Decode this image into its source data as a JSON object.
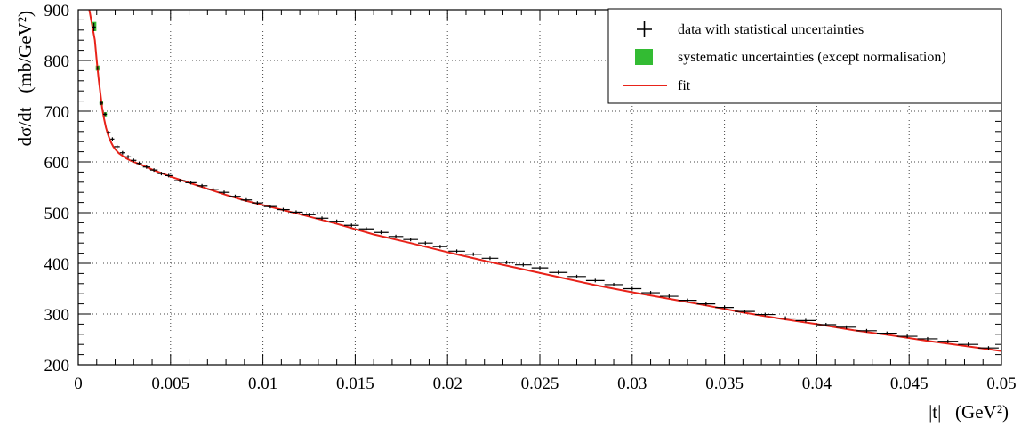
{
  "chart_data": {
    "type": "line",
    "xlabel": "|t|   (GeV²)",
    "ylabel": "dσ/dt   (mb/GeV²)",
    "xlim": [
      0,
      0.05
    ],
    "ylim": [
      200,
      900
    ],
    "x_ticks": [
      "0",
      "0.005",
      "0.01",
      "0.015",
      "0.02",
      "0.025",
      "0.03",
      "0.035",
      "0.04",
      "0.045",
      "0.05"
    ],
    "y_ticks": [
      "200",
      "300",
      "400",
      "500",
      "600",
      "700",
      "800",
      "900"
    ],
    "grid": true,
    "legend_position": "top-right",
    "legend": [
      {
        "label": "data with statistical uncertainties",
        "symbol": "cross",
        "color": "#000000"
      },
      {
        "label": "systematic uncertainties (except normalisation)",
        "symbol": "box",
        "color": "#33bb33"
      },
      {
        "label": "fit",
        "symbol": "line",
        "color": "#e8231a"
      }
    ],
    "series": [
      {
        "name": "data with statistical uncertainties",
        "kind": "points",
        "x": [
          0.00085,
          0.00105,
          0.00125,
          0.00145,
          0.00165,
          0.00185,
          0.0021,
          0.0024,
          0.0027,
          0.003,
          0.0033,
          0.0037,
          0.0041,
          0.0045,
          0.0049,
          0.0055,
          0.0061,
          0.0067,
          0.0073,
          0.0079,
          0.0085,
          0.0091,
          0.0097,
          0.0104,
          0.0111,
          0.0118,
          0.0125,
          0.0132,
          0.014,
          0.0148,
          0.0156,
          0.0164,
          0.0172,
          0.018,
          0.0188,
          0.0196,
          0.0205,
          0.0214,
          0.0223,
          0.0232,
          0.0241,
          0.025,
          0.026,
          0.027,
          0.028,
          0.029,
          0.03,
          0.031,
          0.032,
          0.033,
          0.034,
          0.035,
          0.0361,
          0.0372,
          0.0383,
          0.0394,
          0.0405,
          0.0416,
          0.0427,
          0.0438,
          0.0449,
          0.046,
          0.0471,
          0.0482,
          0.0493
        ],
        "y": [
          866,
          785,
          716,
          694,
          658,
          645,
          630,
          618,
          610,
          603,
          597,
          590,
          584,
          577,
          573,
          563,
          559,
          553,
          546,
          540,
          532,
          525,
          519,
          512,
          506,
          501,
          496,
          489,
          483,
          475,
          468,
          461,
          453,
          447,
          440,
          433,
          424,
          418,
          410,
          402,
          397,
          391,
          382,
          374,
          366,
          358,
          350,
          342,
          335,
          327,
          320,
          313,
          305,
          299,
          292,
          287,
          279,
          274,
          267,
          262,
          256,
          251,
          246,
          240,
          233
        ],
        "x_halfwidth": [
          0.0001,
          0.0001,
          0.0001,
          0.0001,
          0.0001,
          0.0001,
          0.00015,
          0.00015,
          0.00015,
          0.00015,
          0.00015,
          0.0002,
          0.0002,
          0.0002,
          0.0002,
          0.0003,
          0.0003,
          0.0003,
          0.0003,
          0.0003,
          0.0003,
          0.0003,
          0.0003,
          0.00035,
          0.00035,
          0.00035,
          0.00035,
          0.00035,
          0.0004,
          0.0004,
          0.0004,
          0.0004,
          0.0004,
          0.0004,
          0.0004,
          0.0004,
          0.00045,
          0.00045,
          0.00045,
          0.00045,
          0.00045,
          0.00045,
          0.0005,
          0.0005,
          0.0005,
          0.0005,
          0.0005,
          0.0005,
          0.0005,
          0.0005,
          0.0005,
          0.0005,
          0.00055,
          0.00055,
          0.00055,
          0.00055,
          0.00055,
          0.00055,
          0.00055,
          0.00055,
          0.00055,
          0.00055,
          0.00055,
          0.00055,
          0.00055
        ],
        "y_err": [
          8,
          4,
          3,
          3,
          3,
          3,
          2,
          2,
          2,
          2,
          2,
          2,
          2,
          2,
          2,
          2,
          2,
          2,
          2,
          2,
          2,
          2,
          2,
          2,
          2,
          2,
          2,
          2,
          2,
          2,
          2,
          2,
          2,
          2,
          2,
          2,
          2,
          2,
          2,
          2,
          2,
          2,
          2,
          2,
          2,
          2,
          2,
          2,
          2,
          2,
          2,
          2,
          2,
          2,
          2,
          2,
          2,
          2,
          2,
          2,
          2,
          2,
          2,
          2,
          2
        ]
      },
      {
        "name": "systematic uncertainties (except normalisation)",
        "kind": "bands",
        "x": [
          0.00085,
          0.00105,
          0.00125,
          0.00145
        ],
        "y_low": [
          858,
          780,
          712,
          690
        ],
        "y_high": [
          876,
          790,
          720,
          698
        ],
        "x_halfwidth": [
          0.00013,
          0.0001,
          0.0001,
          0.0001
        ]
      },
      {
        "name": "fit",
        "kind": "line",
        "x": [
          0.0006,
          0.0007,
          0.0008,
          0.0009,
          0.001,
          0.0011,
          0.0012,
          0.0013,
          0.0014,
          0.0015,
          0.0016,
          0.0017,
          0.0018,
          0.0019,
          0.002,
          0.0022,
          0.0024,
          0.0026,
          0.0028,
          0.003,
          0.0035,
          0.004,
          0.0045,
          0.005,
          0.006,
          0.007,
          0.008,
          0.009,
          0.01,
          0.012,
          0.014,
          0.016,
          0.018,
          0.02,
          0.022,
          0.024,
          0.026,
          0.028,
          0.03,
          0.032,
          0.034,
          0.036,
          0.038,
          0.04,
          0.042,
          0.044,
          0.046,
          0.048,
          0.05
        ],
        "y": [
          900,
          880,
          860,
          840,
          800,
          765,
          735,
          705,
          685,
          668,
          655,
          645,
          637,
          630,
          625,
          617,
          612,
          607,
          603,
          600,
          593,
          585,
          578,
          571,
          559,
          547,
          535,
          524,
          515,
          497,
          478,
          457,
          440,
          422,
          405,
          389,
          373,
          357,
          343,
          330,
          317,
          303,
          291,
          280,
          268,
          258,
          247,
          237,
          227
        ]
      }
    ]
  }
}
